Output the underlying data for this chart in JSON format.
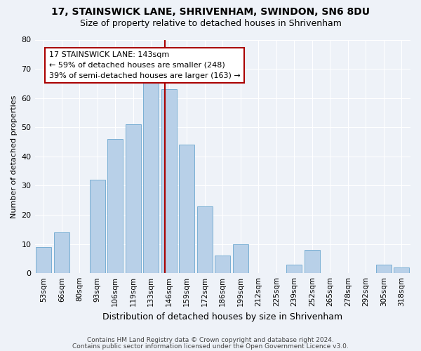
{
  "title1": "17, STAINSWICK LANE, SHRIVENHAM, SWINDON, SN6 8DU",
  "title2": "Size of property relative to detached houses in Shrivenham",
  "xlabel": "Distribution of detached houses by size in Shrivenham",
  "ylabel": "Number of detached properties",
  "categories": [
    "53sqm",
    "66sqm",
    "80sqm",
    "93sqm",
    "106sqm",
    "119sqm",
    "133sqm",
    "146sqm",
    "159sqm",
    "172sqm",
    "186sqm",
    "199sqm",
    "212sqm",
    "225sqm",
    "239sqm",
    "252sqm",
    "265sqm",
    "278sqm",
    "292sqm",
    "305sqm",
    "318sqm"
  ],
  "values": [
    9,
    14,
    0,
    32,
    46,
    51,
    66,
    63,
    44,
    23,
    6,
    10,
    0,
    0,
    3,
    8,
    0,
    0,
    0,
    3,
    2
  ],
  "bar_color": "#b8d0e8",
  "bar_edge_color": "#7aafd4",
  "vline_index": 7.5,
  "vline_color": "#aa0000",
  "annotation_text": "17 STAINSWICK LANE: 143sqm\n← 59% of detached houses are smaller (248)\n39% of semi-detached houses are larger (163) →",
  "annotation_box_color": "#ffffff",
  "annotation_box_edge": "#aa0000",
  "ylim": [
    0,
    80
  ],
  "yticks": [
    0,
    10,
    20,
    30,
    40,
    50,
    60,
    70,
    80
  ],
  "footnote1": "Contains HM Land Registry data © Crown copyright and database right 2024.",
  "footnote2": "Contains public sector information licensed under the Open Government Licence v3.0.",
  "bg_color": "#eef2f8",
  "title1_fontsize": 10,
  "title2_fontsize": 9,
  "grid_color": "#ffffff"
}
